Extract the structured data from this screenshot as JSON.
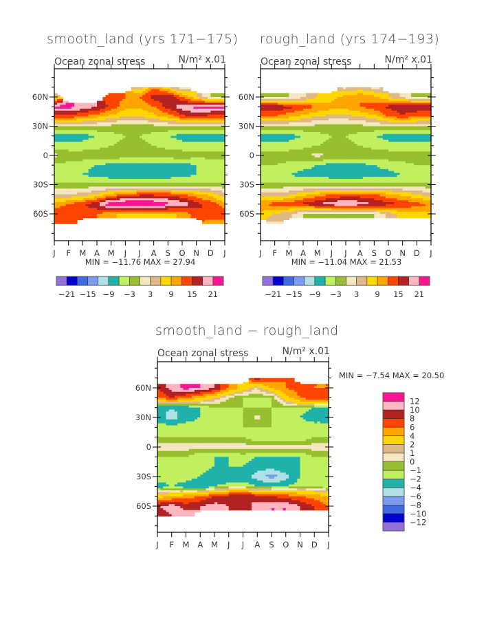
{
  "chart_data": [
    {
      "type": "heatmap",
      "subtype": "filled-contour",
      "title": "smooth_land (yrs 171−175)",
      "subtitle": "Ocean zonal stress",
      "units": "N/m² x.01",
      "min_max_label": "MIN = −11.76 MAX =  27.94",
      "x_tick_labels": [
        "J",
        "F",
        "M",
        "A",
        "M",
        "J",
        "J",
        "A",
        "S",
        "O",
        "N",
        "D",
        "J"
      ],
      "y_tick_labels": [
        "60N",
        "30N",
        "0",
        "30S",
        "60S"
      ],
      "y_tick_values": [
        60,
        30,
        0,
        -30,
        -60
      ],
      "ylim": [
        -90,
        90
      ],
      "latitudes": [
        70,
        60,
        50,
        40,
        30,
        20,
        10,
        0,
        -10,
        -20,
        -30,
        -40,
        -50,
        -60,
        -70
      ],
      "values": [
        [
          null,
          null,
          null,
          null,
          null,
          null,
          4,
          12,
          6,
          1,
          null,
          null,
          null
        ],
        [
          6,
          null,
          null,
          null,
          14,
          12,
          12,
          16,
          18,
          12,
          6,
          0,
          0
        ],
        [
          22,
          22,
          20,
          18,
          14,
          10,
          10,
          12,
          16,
          20,
          22,
          22,
          22
        ],
        [
          14,
          14,
          12,
          10,
          8,
          6,
          6,
          8,
          10,
          14,
          16,
          14,
          14
        ],
        [
          0,
          0,
          0,
          0,
          -1,
          -2,
          -2,
          -1,
          0,
          0,
          0,
          0,
          0
        ],
        [
          -7,
          -7,
          -7,
          -6,
          -4,
          -3,
          -3,
          -4,
          -6,
          -7,
          -7,
          -7,
          -7
        ],
        [
          -5,
          -5,
          -5,
          -4,
          -3,
          -2,
          -2,
          -3,
          -4,
          -5,
          -5,
          -5,
          -5
        ],
        [
          1,
          -1,
          -1,
          -1,
          -1,
          -1,
          -1,
          -1,
          -1,
          -1,
          -2,
          -2,
          -2
        ],
        [
          -4,
          -4,
          -5,
          -6,
          -7,
          -8,
          -8,
          -8,
          -8,
          -7,
          -6,
          -5,
          -4
        ],
        [
          -6,
          -6,
          -6,
          -7,
          -8,
          -8,
          -8,
          -8,
          -8,
          -7,
          -6,
          -6,
          -6
        ],
        [
          -2,
          -2,
          -2,
          -2,
          -2,
          -2,
          -2,
          -2,
          -2,
          -2,
          -2,
          -2,
          -2
        ],
        [
          3,
          3,
          4,
          6,
          10,
          12,
          14,
          14,
          14,
          12,
          10,
          8,
          4
        ],
        [
          10,
          12,
          14,
          18,
          24,
          25,
          25,
          24,
          22,
          20,
          16,
          14,
          10
        ],
        [
          14,
          15,
          14,
          12,
          10,
          8,
          8,
          8,
          8,
          10,
          14,
          15,
          14
        ],
        [
          12,
          12,
          null,
          null,
          null,
          null,
          null,
          null,
          null,
          null,
          null,
          10,
          10
        ]
      ],
      "levels": [
        -21,
        -18,
        -15,
        -12,
        -9,
        -6,
        -3,
        0,
        3,
        6,
        9,
        12,
        15,
        18,
        21
      ],
      "colorbar_labels": [
        "−21",
        "−15",
        "−9",
        "−3",
        "3",
        "9",
        "15",
        "21"
      ]
    },
    {
      "type": "heatmap",
      "subtype": "filled-contour",
      "title": "rough_land (yrs 174−193)",
      "subtitle": "Ocean zonal stress",
      "units": "N/m² x.01",
      "min_max_label": "MIN = −11.04 MAX =  21.53",
      "x_tick_labels": [
        "J",
        "F",
        "M",
        "A",
        "M",
        "J",
        "J",
        "A",
        "S",
        "O",
        "N",
        "D",
        "J"
      ],
      "y_tick_labels": [
        "60N",
        "30N",
        "0",
        "30S",
        "60S"
      ],
      "y_tick_values": [
        60,
        30,
        0,
        -30,
        -60
      ],
      "ylim": [
        -90,
        90
      ],
      "latitudes": [
        70,
        60,
        50,
        40,
        30,
        20,
        10,
        0,
        -10,
        -20,
        -30,
        -40,
        -50,
        -60,
        -70
      ],
      "values": [
        [
          null,
          null,
          null,
          null,
          null,
          null,
          2,
          4,
          2,
          null,
          null,
          null,
          null
        ],
        [
          -1,
          -1,
          0,
          2,
          6,
          8,
          10,
          12,
          10,
          6,
          2,
          -1,
          -1
        ],
        [
          18,
          18,
          16,
          14,
          12,
          10,
          10,
          12,
          14,
          16,
          18,
          18,
          18
        ],
        [
          12,
          12,
          10,
          8,
          6,
          5,
          5,
          6,
          8,
          12,
          14,
          12,
          12
        ],
        [
          0,
          0,
          0,
          0,
          -1,
          -2,
          -2,
          -1,
          0,
          0,
          0,
          0,
          0
        ],
        [
          -7,
          -7,
          -7,
          -6,
          -4,
          -3,
          -3,
          -4,
          -6,
          -7,
          -7,
          -7,
          -7
        ],
        [
          -5,
          -5,
          -5,
          -4,
          -3,
          -2,
          -2,
          -3,
          -4,
          -5,
          -5,
          -5,
          -5
        ],
        [
          -1,
          -1,
          -1,
          -1,
          1,
          -1,
          -1,
          -1,
          -1,
          -1,
          -1,
          -1,
          -1
        ],
        [
          -3,
          -3,
          -4,
          -5,
          -6,
          -7,
          -7,
          -7,
          -6,
          -5,
          -4,
          -3,
          -3
        ],
        [
          -6,
          -6,
          -6,
          -7,
          -7,
          -8,
          -8,
          -8,
          -7,
          -7,
          -6,
          -6,
          -6
        ],
        [
          -2,
          -2,
          -2,
          -2,
          -2,
          -2,
          -2,
          -2,
          -2,
          -2,
          -2,
          -2,
          -2
        ],
        [
          4,
          4,
          5,
          8,
          10,
          12,
          13,
          13,
          12,
          10,
          8,
          6,
          4
        ],
        [
          12,
          13,
          14,
          16,
          18,
          20,
          21,
          20,
          18,
          16,
          15,
          13,
          12
        ],
        [
          8,
          6,
          4,
          0,
          -1,
          -2,
          -1,
          -1,
          0,
          4,
          8,
          8,
          8
        ],
        [
          null,
          2,
          null,
          null,
          null,
          null,
          null,
          null,
          null,
          null,
          null,
          null,
          null
        ]
      ],
      "levels": [
        -21,
        -18,
        -15,
        -12,
        -9,
        -6,
        -3,
        0,
        3,
        6,
        9,
        12,
        15,
        18,
        21
      ],
      "colorbar_labels": [
        "−21",
        "−15",
        "−9",
        "−3",
        "3",
        "9",
        "15",
        "21"
      ]
    },
    {
      "type": "heatmap",
      "subtype": "filled-contour",
      "title": "smooth_land − rough_land",
      "subtitle": "Ocean zonal stress",
      "units": "N/m² x.01",
      "min_max_label": "MIN =  −7.54 MAX =  20.50",
      "x_tick_labels": [
        "J",
        "F",
        "M",
        "A",
        "M",
        "J",
        "J",
        "A",
        "S",
        "O",
        "N",
        "D",
        "J"
      ],
      "y_tick_labels": [
        "60N",
        "30N",
        "0",
        "30S",
        "60S"
      ],
      "y_tick_values": [
        60,
        30,
        0,
        -30,
        -60
      ],
      "ylim": [
        -90,
        90
      ],
      "latitudes": [
        70,
        60,
        50,
        40,
        30,
        20,
        10,
        0,
        -10,
        -20,
        -30,
        -40,
        -50,
        -60,
        -70
      ],
      "values": [
        [
          null,
          null,
          null,
          null,
          null,
          null,
          null,
          9,
          7,
          6,
          null,
          null,
          null
        ],
        [
          8,
          11,
          13,
          12,
          10,
          6,
          3,
          1,
          4,
          6,
          7,
          6,
          6
        ],
        [
          6,
          8,
          6,
          4,
          2,
          0,
          -1,
          -1,
          -1,
          3,
          6,
          8,
          8
        ],
        [
          -3,
          -4,
          -3,
          -2,
          -1,
          -1,
          -1,
          -1,
          -1,
          -1,
          -1,
          -2,
          -3
        ],
        [
          -3,
          -5,
          -3,
          -2,
          -1,
          -1,
          -1,
          0.5,
          -1,
          -1,
          -2,
          -3,
          -3
        ],
        [
          -1,
          -1,
          -1,
          -1,
          -1,
          -1,
          -1,
          -1,
          -1,
          -1,
          -1,
          -1,
          -1
        ],
        [
          -1,
          -1,
          -1,
          -1,
          -1,
          -1,
          -1,
          -2,
          -2,
          -2,
          -2,
          -1,
          -1
        ],
        [
          0.5,
          0.5,
          0.5,
          0.5,
          0.5,
          0.5,
          0.5,
          0.5,
          0.5,
          0.5,
          0.5,
          0.5,
          0.5
        ],
        [
          -1,
          -1,
          -1,
          -2,
          -2,
          -2,
          -1.5,
          -2,
          -2,
          -2,
          -2,
          -1,
          -1
        ],
        [
          -1,
          -1,
          -1,
          -1,
          -2,
          -2,
          -2,
          -3,
          -3,
          -2,
          -2,
          -1,
          -1
        ],
        [
          -1,
          -1,
          -1,
          -2,
          -4,
          -4,
          -3,
          -5,
          -7,
          -5,
          -2,
          -1,
          -1
        ],
        [
          -3,
          -2,
          -3,
          -4,
          -2,
          -1,
          -1,
          -2,
          -2,
          -2,
          -1,
          -1,
          -2
        ],
        [
          3,
          4,
          5,
          6,
          8,
          9,
          10,
          9,
          8,
          7,
          6,
          5,
          4
        ],
        [
          10,
          11,
          9,
          10,
          11,
          10,
          9,
          11,
          12,
          12,
          10,
          8,
          6
        ],
        [
          8,
          10,
          12,
          null,
          null,
          null,
          null,
          null,
          null,
          null,
          null,
          null,
          null
        ]
      ],
      "levels": [
        -12,
        -10,
        -8,
        -6,
        -4,
        -2,
        -1,
        0,
        1,
        2,
        4,
        6,
        8,
        10,
        12
      ],
      "colorbar_labels": [
        "12",
        "10",
        "8",
        "6",
        "4",
        "2",
        "1",
        "0",
        "−1",
        "−2",
        "−4",
        "−6",
        "−8",
        "−10",
        "−12"
      ]
    }
  ],
  "colors": {
    "palette": [
      "#9370db",
      "#0000cd",
      "#4169e1",
      "#7a9cf0",
      "#b0e0e6",
      "#20b2aa",
      "#c0f060",
      "#98bf30",
      "#f5e6c0",
      "#deb887",
      "#ffd700",
      "#ffa500",
      "#ff4500",
      "#b22222",
      "#ffb6c1",
      "#ff1493"
    ],
    "axis": "#000000"
  }
}
